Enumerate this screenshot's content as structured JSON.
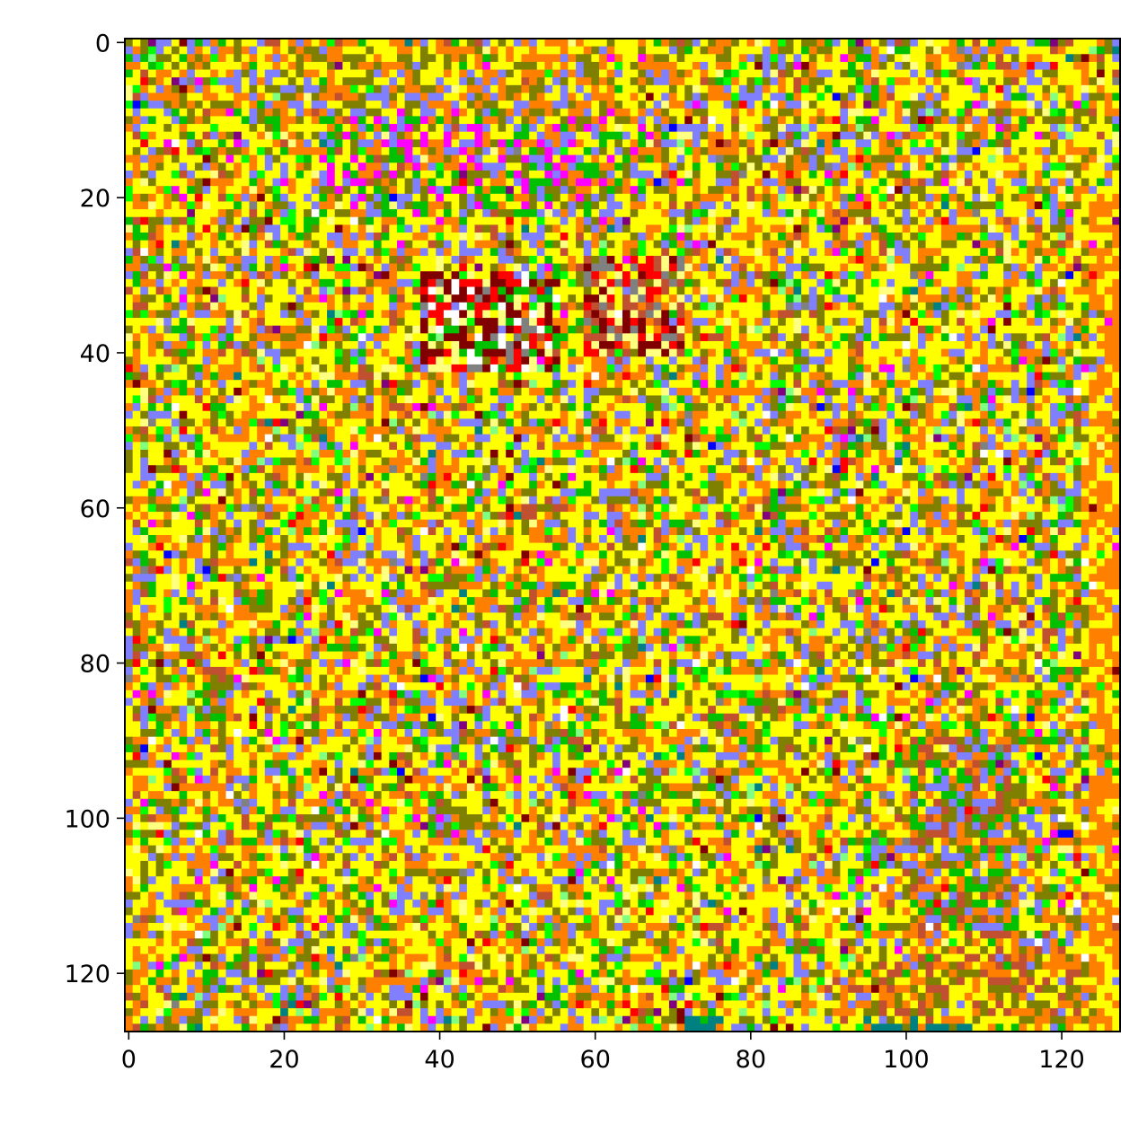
{
  "chart_data": {
    "type": "heatmap",
    "grid_size": [
      128,
      128
    ],
    "x_ticks": [
      "0",
      "20",
      "40",
      "60",
      "80",
      "100",
      "120"
    ],
    "y_ticks": [
      "0",
      "20",
      "40",
      "60",
      "80",
      "100",
      "120"
    ],
    "xlim": [
      -0.5,
      127.5
    ],
    "ylim": [
      127.5,
      -0.5
    ],
    "grid": false,
    "legend": "none",
    "title": "",
    "xlabel": "",
    "ylabel": "",
    "palette": [
      "#ffff00",
      "#ff8000",
      "#808000",
      "#8080ff",
      "#00c000",
      "#c05030",
      "#800000",
      "#ff0000",
      "#00ff00",
      "#ffff80",
      "#ff00ff",
      "#808080",
      "#008080",
      "#80ff80",
      "#ffffff",
      "#0000ff",
      "#800080"
    ],
    "background_weights": [
      34,
      20,
      14,
      12,
      5,
      4,
      1,
      1,
      3,
      3,
      1,
      0.5,
      0.5,
      1,
      0.5,
      0.3,
      0.5
    ],
    "regions": [
      {
        "label": "top band",
        "cols": [
          14,
          78
        ],
        "rows": [
          1,
          3
        ],
        "colors": [
          "#808000",
          "#ff8000",
          "#ffff00"
        ]
      },
      {
        "label": "top stripes",
        "cols": [
          16,
          72
        ],
        "rows": [
          4,
          9
        ],
        "colors": [
          "#ff8000",
          "#8080ff",
          "#ffff00",
          "#808000"
        ]
      },
      {
        "label": "green block",
        "cols": [
          25,
          66
        ],
        "rows": [
          9,
          22
        ],
        "colors": [
          "#00c000",
          "#808000",
          "#ff8000",
          "#ffff00",
          "#8080ff",
          "#ff00ff"
        ]
      },
      {
        "label": "red cluster left",
        "cols": [
          38,
          55
        ],
        "rows": [
          30,
          42
        ],
        "colors": [
          "#800000",
          "#ff0000",
          "#ffff80",
          "#00c000",
          "#808080",
          "#ffffff",
          "#800000"
        ]
      },
      {
        "label": "red cluster right",
        "cols": [
          59,
          71
        ],
        "rows": [
          28,
          40
        ],
        "colors": [
          "#800000",
          "#ff0000",
          "#808080",
          "#ffff80",
          "#c05030"
        ]
      },
      {
        "label": "bottom-right block",
        "cols": [
          101,
          114
        ],
        "rows": [
          90,
          115
        ],
        "colors": [
          "#00c000",
          "#c05030",
          "#808000",
          "#ff8000",
          "#8080ff"
        ]
      },
      {
        "label": "bottom-right stripes",
        "cols": [
          96,
          124
        ],
        "rows": [
          117,
          126
        ],
        "colors": [
          "#ff8000",
          "#ffff00",
          "#c05030",
          "#808000"
        ]
      },
      {
        "label": "teal bottom",
        "cols": [
          95,
          110
        ],
        "rows": [
          126,
          127
        ],
        "colors": [
          "#008080"
        ]
      },
      {
        "label": "teal bottom small",
        "cols": [
          72,
          76
        ],
        "rows": [
          126,
          127
        ],
        "colors": [
          "#008080"
        ]
      },
      {
        "label": "right orange edge",
        "cols": [
          124,
          127
        ],
        "rows": [
          20,
          127
        ],
        "colors": [
          "#ff8000",
          "#ff8000",
          "#ffff00"
        ]
      }
    ]
  }
}
